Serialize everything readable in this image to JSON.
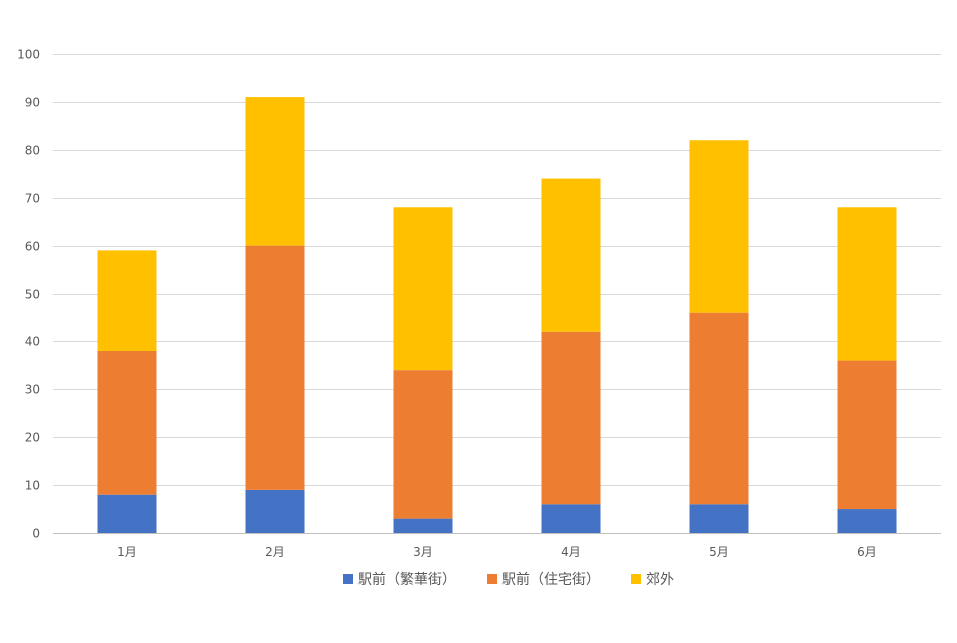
{
  "chart_data": {
    "type": "bar",
    "stacked": true,
    "categories": [
      "1月",
      "2月",
      "3月",
      "4月",
      "5月",
      "6月"
    ],
    "series": [
      {
        "name": "駅前（繁華街）",
        "color": "#4472C4",
        "values": [
          8,
          9,
          3,
          6,
          6,
          5
        ]
      },
      {
        "name": "駅前（住宅街）",
        "color": "#ED7D31",
        "values": [
          30,
          51,
          31,
          36,
          40,
          31
        ]
      },
      {
        "name": "郊外",
        "color": "#FFC000",
        "values": [
          21,
          31,
          34,
          32,
          36,
          32
        ]
      }
    ],
    "yticks": [
      0,
      10,
      20,
      30,
      40,
      50,
      60,
      70,
      80,
      90,
      100
    ],
    "ylim": [
      0,
      100
    ],
    "grid": true,
    "legend": "bottom",
    "title": "",
    "xlabel": "",
    "ylabel": ""
  }
}
